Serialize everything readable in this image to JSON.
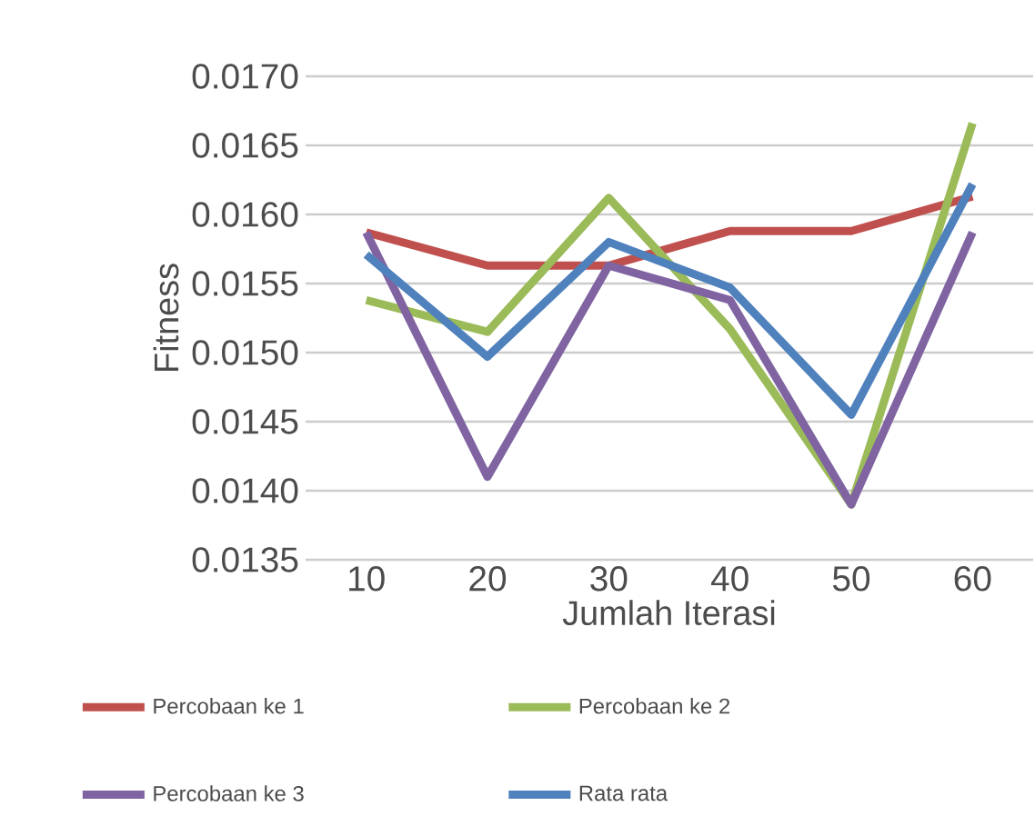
{
  "chart_data": {
    "type": "line",
    "xlabel": "Jumlah Iterasi",
    "ylabel": "Fitness",
    "categories": [
      "10",
      "20",
      "30",
      "40",
      "50",
      "60"
    ],
    "series": [
      {
        "name": "Percobaan ke 1",
        "color": "#c0504d",
        "values": [
          0.01587,
          0.01563,
          0.01563,
          0.01588,
          0.01588,
          0.01613
        ]
      },
      {
        "name": "Percobaan ke 2",
        "color": "#9bbb59",
        "values": [
          0.01538,
          0.01515,
          0.01612,
          0.01517,
          0.0139,
          0.01666
        ]
      },
      {
        "name": "Percobaan ke 3",
        "color": "#8064a2",
        "values": [
          0.01587,
          0.0141,
          0.01563,
          0.01538,
          0.0139,
          0.01587
        ]
      },
      {
        "name": "Rata rata",
        "color": "#4f81bd",
        "values": [
          0.01571,
          0.01497,
          0.0158,
          0.01547,
          0.01455,
          0.01622
        ]
      }
    ],
    "ylim": [
      0.0135,
      0.017
    ],
    "yticks": [
      {
        "value": 0.0135,
        "label": "0.0135"
      },
      {
        "value": 0.014,
        "label": "0.0140"
      },
      {
        "value": 0.0145,
        "label": "0.0145"
      },
      {
        "value": 0.015,
        "label": "0.0150"
      },
      {
        "value": 0.0155,
        "label": "0.0155"
      },
      {
        "value": 0.016,
        "label": "0.0160"
      },
      {
        "value": 0.0165,
        "label": "0.0165"
      },
      {
        "value": 0.017,
        "label": "0.0170"
      }
    ],
    "grid": "y",
    "legend": "bottom",
    "marker": "none",
    "line_style": "solid"
  }
}
